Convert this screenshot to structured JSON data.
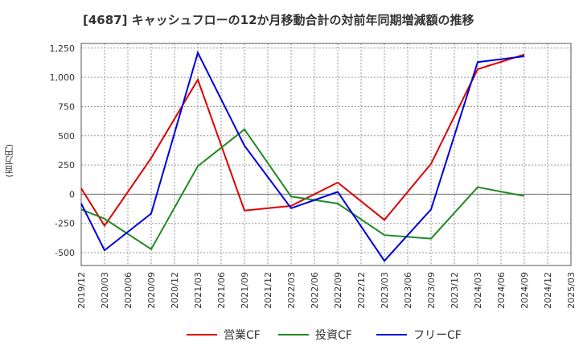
{
  "title": "[4687]  キャッシュフローの12か月移動合計の対前年同期増減額の推移",
  "chart_data": {
    "type": "line",
    "title": "[4687]  キャッシュフローの12か月移動合計の対前年同期増減額の推移",
    "ylabel": "(百万円)",
    "xlabel": "",
    "ylim": [
      -610,
      1290
    ],
    "yticks": [
      -500,
      -250,
      0,
      250,
      500,
      750,
      1000,
      1250
    ],
    "ytick_labels": [
      "-500",
      "-250",
      "0",
      "250",
      "500",
      "750",
      "1,000",
      "1,250"
    ],
    "xticks": [
      "2019/12",
      "2020/03",
      "2020/06",
      "2020/09",
      "2020/12",
      "2021/03",
      "2021/06",
      "2021/09",
      "2021/12",
      "2022/03",
      "2022/06",
      "2022/09",
      "2022/12",
      "2023/03",
      "2023/06",
      "2023/09",
      "2023/12",
      "2024/03",
      "2024/06",
      "2024/09",
      "2024/12",
      "2025/03"
    ],
    "grid": true,
    "legend_position": "bottom",
    "series": [
      {
        "name": "営業CF",
        "color": "#dd0000",
        "x": [
          "2019/12",
          "2020/03",
          "2020/09",
          "2021/03",
          "2021/09",
          "2022/03",
          "2022/09",
          "2023/03",
          "2023/09",
          "2024/03",
          "2024/09"
        ],
        "values": [
          50,
          -270,
          310,
          980,
          -140,
          -100,
          100,
          -220,
          260,
          1070,
          1195
        ]
      },
      {
        "name": "投資CF",
        "color": "#228822",
        "x": [
          "2019/12",
          "2020/03",
          "2020/09",
          "2021/03",
          "2021/09",
          "2022/03",
          "2022/09",
          "2023/03",
          "2023/09",
          "2024/03",
          "2024/09"
        ],
        "values": [
          -130,
          -210,
          -470,
          240,
          555,
          -20,
          -80,
          -350,
          -380,
          60,
          -15
        ]
      },
      {
        "name": "フリーCF",
        "color": "#0000dd",
        "x": [
          "2019/12",
          "2020/03",
          "2020/09",
          "2021/03",
          "2021/09",
          "2022/03",
          "2022/09",
          "2023/03",
          "2023/09",
          "2024/03",
          "2024/09"
        ],
        "values": [
          -80,
          -480,
          -165,
          1210,
          415,
          -120,
          20,
          -570,
          -130,
          1130,
          1180
        ]
      }
    ]
  }
}
